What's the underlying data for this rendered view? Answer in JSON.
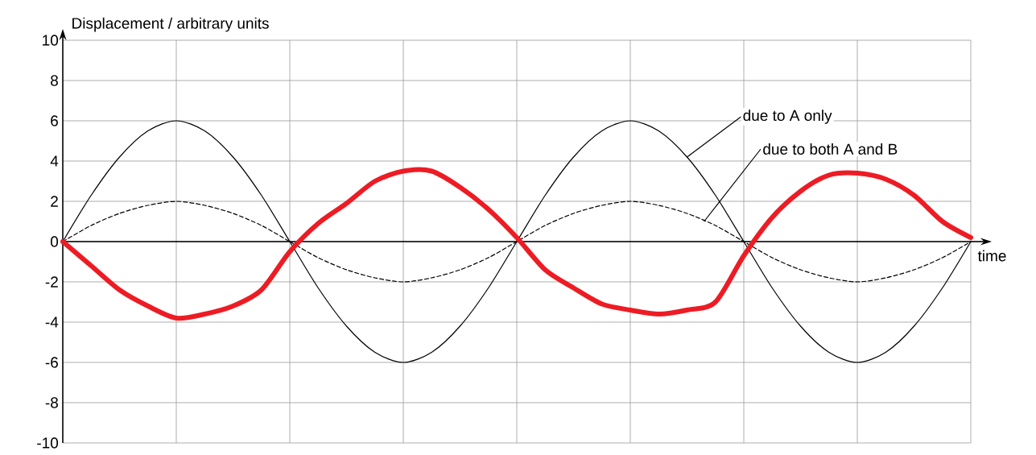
{
  "chart_data": {
    "type": "line",
    "xlabel": "time",
    "ylabel": "Displacement / arbitrary units",
    "categories": [
      null,
      null,
      null,
      null,
      null,
      null,
      null,
      null,
      null,
      null,
      null,
      null,
      null,
      null,
      null,
      null,
      null,
      null,
      null,
      null,
      null,
      null,
      null,
      null,
      null,
      null,
      null,
      null,
      null,
      null,
      null,
      null,
      null
    ],
    "series": [
      {
        "name": "due to A only",
        "color": "#000000",
        "line_style": "solid",
        "values": [
          0,
          2.3,
          4.2,
          5.5,
          6,
          5.5,
          4.2,
          2.3,
          0,
          -2.3,
          -4.2,
          -5.5,
          -6,
          -5.5,
          -4.2,
          -2.3,
          0,
          2.3,
          4.2,
          5.5,
          6,
          5.5,
          4.2,
          2.3,
          0,
          -2.3,
          -4.2,
          -5.5,
          -6,
          -5.5,
          -4.2,
          -2.3,
          0
        ]
      },
      {
        "name": "due to both A and B",
        "color": "#000000",
        "line_style": "dashed",
        "values": [
          0,
          0.8,
          1.4,
          1.8,
          2,
          1.8,
          1.4,
          0.8,
          0,
          -0.8,
          -1.4,
          -1.8,
          -2,
          -1.8,
          -1.4,
          -0.8,
          0,
          0.8,
          1.4,
          1.8,
          2,
          1.8,
          1.4,
          0.8,
          0,
          -0.8,
          -1.4,
          -1.8,
          -2,
          -1.8,
          -1.4,
          -0.8,
          0
        ]
      },
      {
        "color": "#ed1c24",
        "line_style": "solid",
        "values": [
          0,
          -1.2,
          -2.4,
          -3.2,
          -3.8,
          -3.6,
          -3.2,
          -2.4,
          -0.5,
          0.9,
          1.9,
          3.0,
          3.5,
          3.5,
          2.7,
          1.6,
          0.2,
          -1.4,
          -2.3,
          -3.1,
          -3.4,
          -3.6,
          -3.4,
          -3.0,
          -0.7,
          1.2,
          2.5,
          3.3,
          3.4,
          3.1,
          2.3,
          1.0,
          0.2
        ]
      }
    ],
    "ylim": [
      -10,
      10
    ],
    "yticks": [
      -10,
      -8,
      -6,
      -4,
      -2,
      0,
      2,
      4,
      6,
      8,
      10
    ],
    "grid": true,
    "tick_labels": "y",
    "legend": false,
    "marker": "none"
  }
}
